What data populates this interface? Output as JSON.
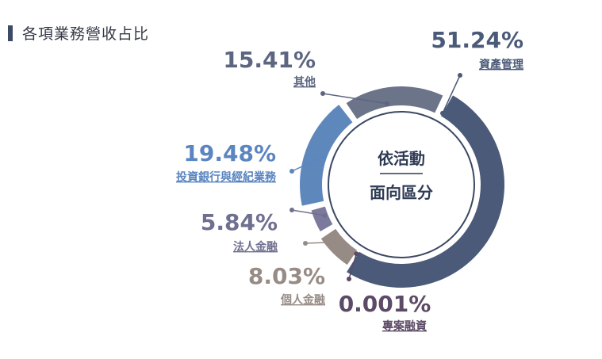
{
  "title": "各項業務營收占比",
  "center": {
    "line1": "依活動",
    "line2": "面向區分"
  },
  "chart_data": {
    "type": "pie",
    "variant": "donut",
    "title": "各項業務營收占比",
    "slices": [
      {
        "label": "資產管理",
        "value": 51.24,
        "text": "51.24%",
        "color": "#4a5a78",
        "label_color": "#4a5a78"
      },
      {
        "label": "專案融資",
        "value": 0.001,
        "text": "0.001%",
        "color": "#5c4a66",
        "label_color": "#5c4a66"
      },
      {
        "label": "個人金融",
        "value": 8.03,
        "text": "8.03%",
        "color": "#978b85",
        "label_color": "#978b85"
      },
      {
        "label": "法人金融",
        "value": 5.84,
        "text": "5.84%",
        "color": "#7b7a9c",
        "label_color": "#6f6f90"
      },
      {
        "label": "投資銀行與經紀業務",
        "value": 19.48,
        "text": "19.48%",
        "color": "#5e88bc",
        "label_color": "#5a85c0"
      },
      {
        "label": "其他",
        "value": 15.41,
        "text": "15.41%",
        "color": "#6b7489",
        "label_color": "#5d6680"
      }
    ]
  }
}
